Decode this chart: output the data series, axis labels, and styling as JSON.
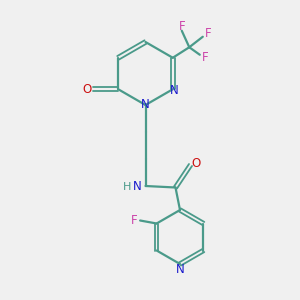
{
  "bg_color": "#f0f0f0",
  "bond_color": "#4a9a8a",
  "nitrogen_color": "#1a1acc",
  "oxygen_color": "#cc1111",
  "fluorine_color": "#cc44aa",
  "fluorine_gray_color": "#4a9a8a",
  "figsize": [
    3.0,
    3.0
  ],
  "dpi": 100,
  "xlim": [
    0,
    10
  ],
  "ylim": [
    0,
    10
  ]
}
